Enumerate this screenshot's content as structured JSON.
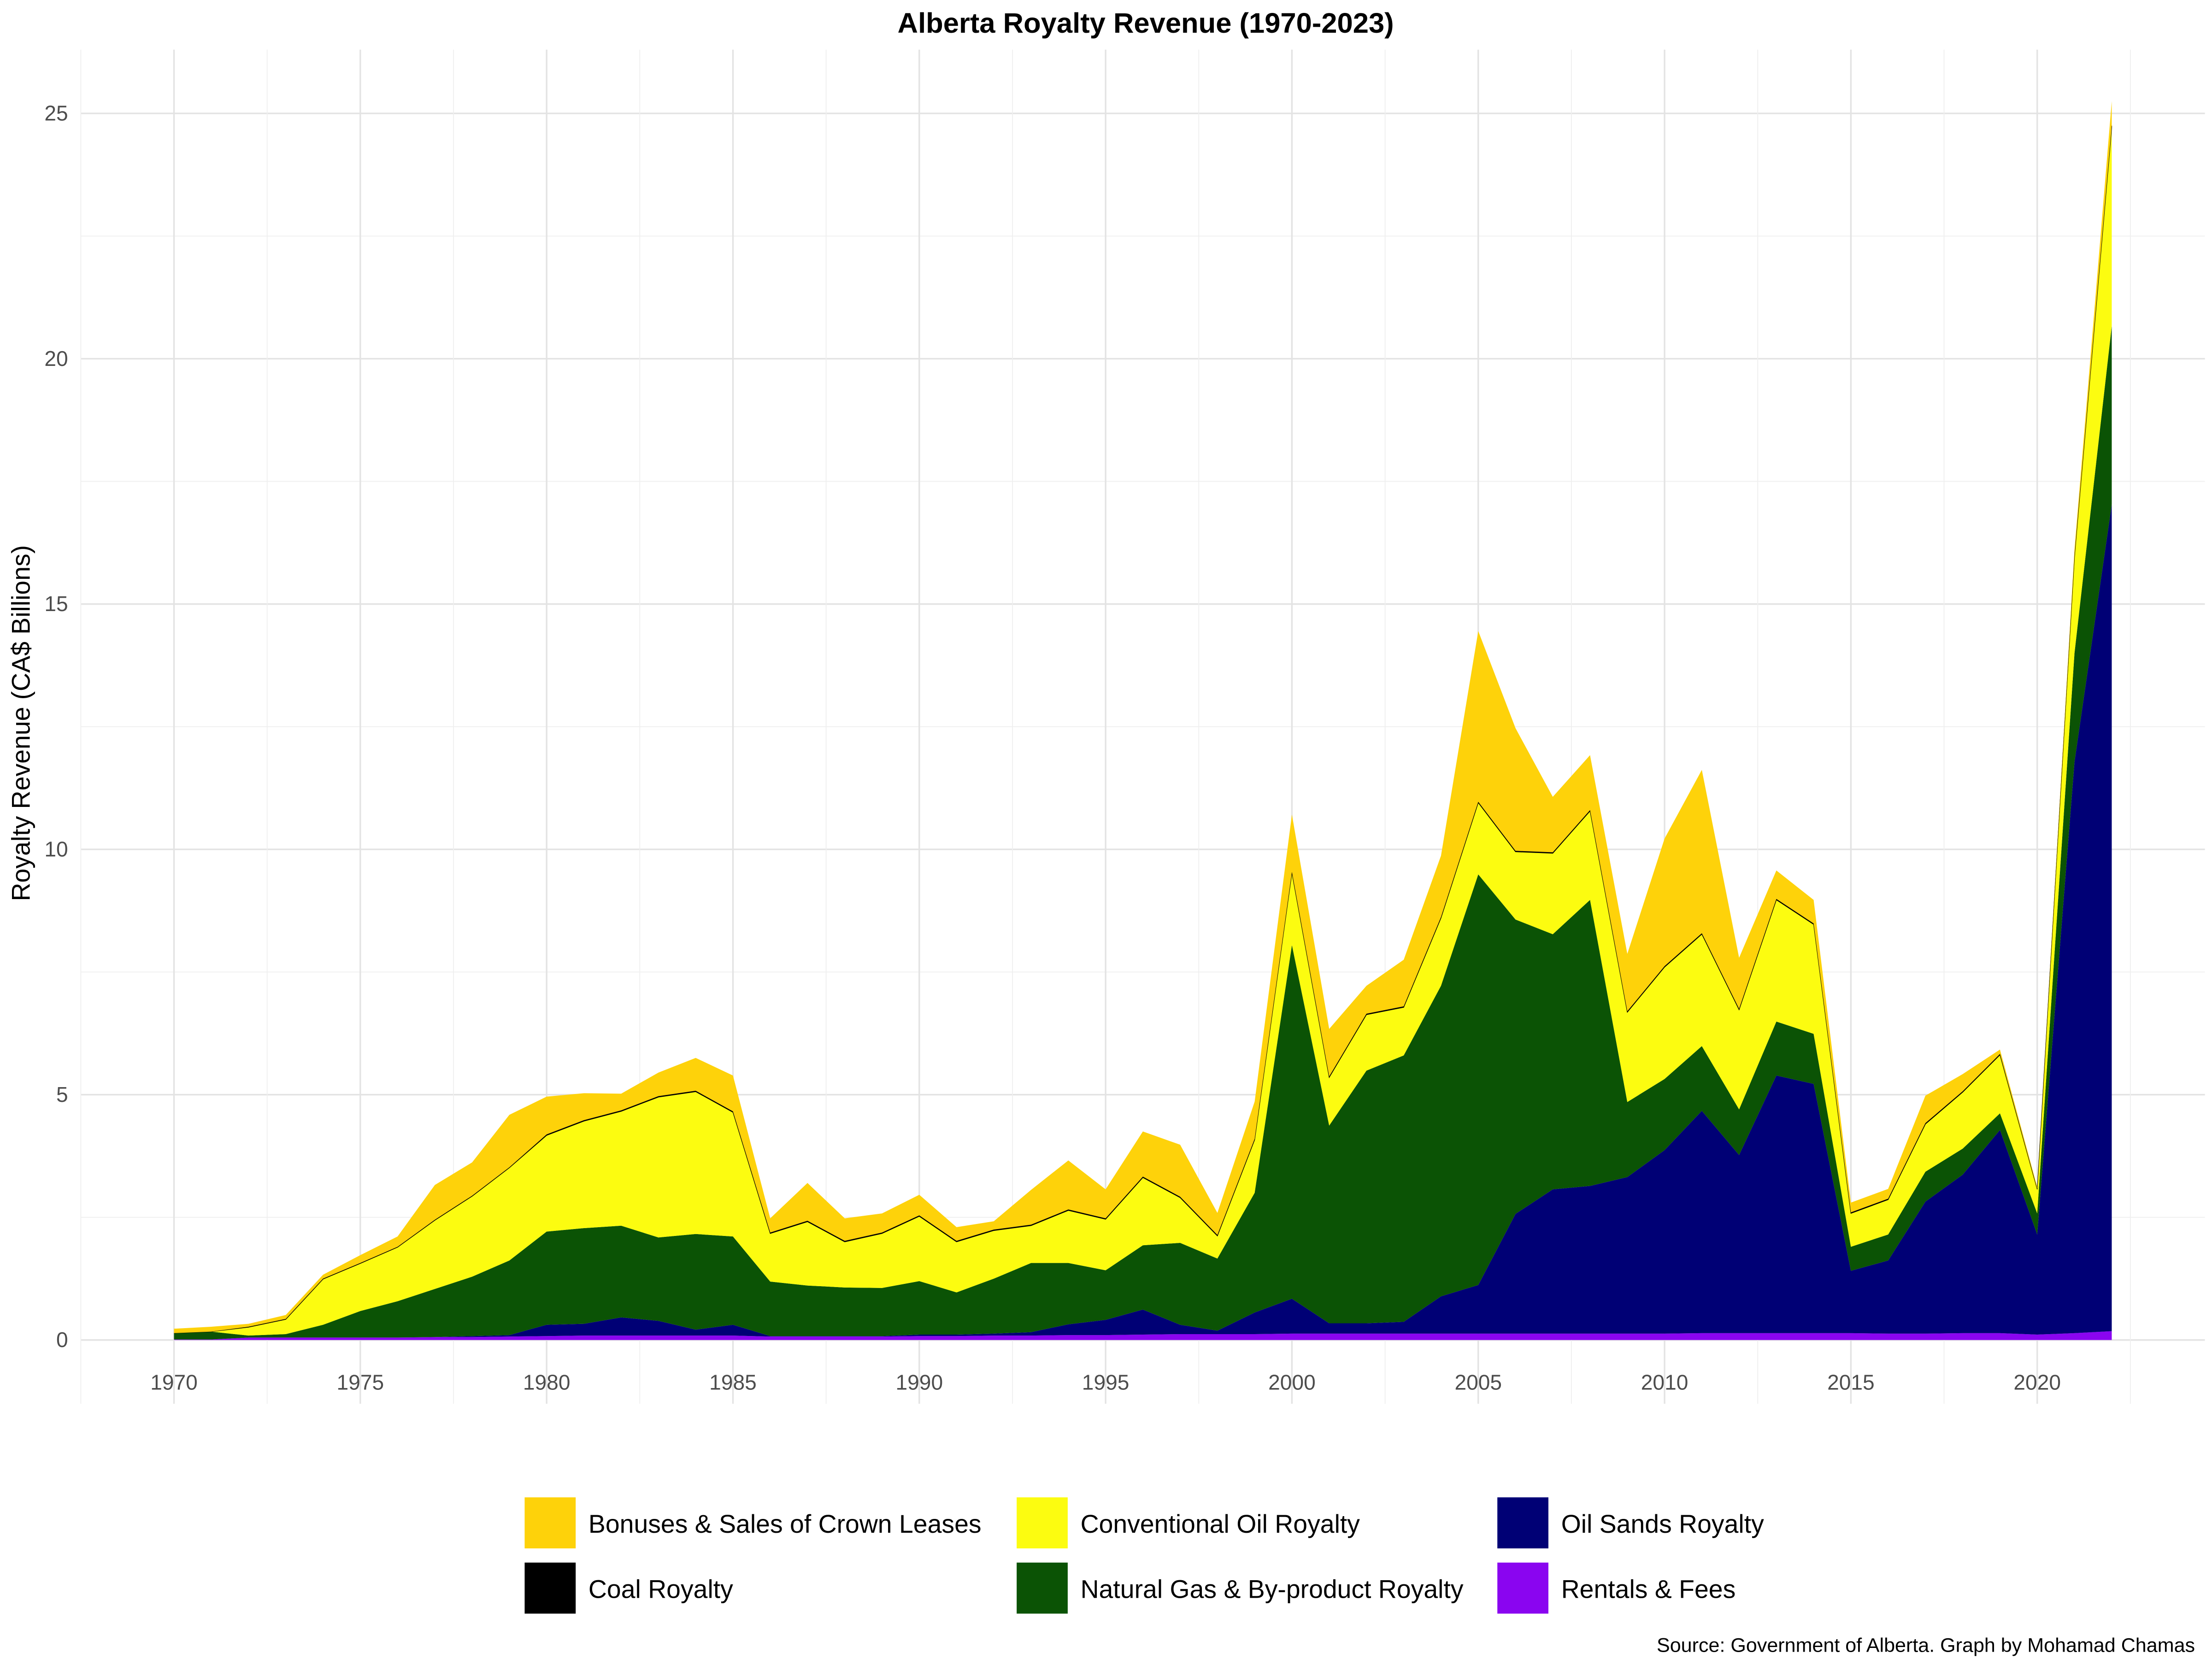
{
  "chart_data": {
    "type": "area",
    "stacked": true,
    "title": "Alberta Royalty Revenue (1970-2023)",
    "xlabel": "",
    "ylabel": "Royalty Revenue (CA$ Billions)",
    "caption": "Source: Government of Alberta. Graph by Mohamad Chamas",
    "xlim": [
      1967.5,
      2024.5
    ],
    "ylim": [
      -1.3,
      26.3
    ],
    "x_ticks": [
      "1970",
      "1975",
      "1980",
      "1985",
      "1990",
      "1995",
      "2000",
      "2005",
      "2010",
      "2015",
      "2020"
    ],
    "y_ticks": [
      "0",
      "5",
      "10",
      "15",
      "20",
      "25"
    ],
    "grid": true,
    "legend_position": "bottom",
    "x": [
      1970,
      1971,
      1972,
      1973,
      1974,
      1975,
      1976,
      1977,
      1978,
      1979,
      1980,
      1981,
      1982,
      1983,
      1984,
      1985,
      1986,
      1987,
      1988,
      1989,
      1990,
      1991,
      1992,
      1993,
      1994,
      1995,
      1996,
      1997,
      1998,
      1999,
      2000,
      2001,
      2002,
      2003,
      2004,
      2005,
      2006,
      2007,
      2008,
      2009,
      2010,
      2011,
      2012,
      2013,
      2014,
      2015,
      2016,
      2017,
      2018,
      2019,
      2020,
      2021,
      2022
    ],
    "series": [
      {
        "name": "Bonuses & Sales of Crown Leases",
        "color": "#FED20A",
        "values": [
          0.09,
          0.1,
          0.06,
          0.08,
          0.08,
          0.16,
          0.21,
          0.71,
          0.68,
          1.07,
          0.77,
          0.55,
          0.34,
          0.48,
          0.67,
          0.73,
          0.29,
          0.77,
          0.46,
          0.39,
          0.42,
          0.28,
          0.17,
          0.71,
          1.0,
          0.59,
          0.92,
          1.06,
          0.45,
          0.76,
          1.17,
          0.97,
          0.57,
          0.95,
          1.25,
          3.48,
          2.5,
          1.13,
          1.12,
          1.17,
          2.6,
          3.33,
          1.04,
          0.58,
          0.48,
          0.2,
          0.2,
          0.56,
          0.35,
          0.09,
          0.04,
          0.14,
          0.5
        ]
      },
      {
        "name": "Coal Royalty",
        "color": "#000000",
        "values": [
          0,
          0,
          0.01,
          0.01,
          0.01,
          0.01,
          0.01,
          0.01,
          0.01,
          0.01,
          0.02,
          0.02,
          0.02,
          0.02,
          0.02,
          0.02,
          0.02,
          0.02,
          0.02,
          0.02,
          0.02,
          0.02,
          0.02,
          0.02,
          0.02,
          0.02,
          0.02,
          0.02,
          0.02,
          0.02,
          0.02,
          0.02,
          0.02,
          0.02,
          0.02,
          0.02,
          0.02,
          0.02,
          0.02,
          0.02,
          0.02,
          0.02,
          0.02,
          0.02,
          0.02,
          0.02,
          0.02,
          0.02,
          0.02,
          0.02,
          0.01,
          0.02,
          0.03
        ]
      },
      {
        "name": "Conventional Oil Royalty",
        "color": "#FCFC10",
        "values": [
          0,
          0,
          0.17,
          0.3,
          0.93,
          0.97,
          1.1,
          1.4,
          1.64,
          1.89,
          1.96,
          2.18,
          2.33,
          2.86,
          2.9,
          2.53,
          0.98,
          1.3,
          0.93,
          1.11,
          1.32,
          1.03,
          0.98,
          0.76,
          1.07,
          1.04,
          1.38,
          0.92,
          0.46,
          1.08,
          1.47,
          0.98,
          1.14,
          0.98,
          1.38,
          1.46,
          1.38,
          1.65,
          1.81,
          1.83,
          2.28,
          2.28,
          2.03,
          2.48,
          2.23,
          0.68,
          0.71,
          0.97,
          1.15,
          1.19,
          0.49,
          1.96,
          4.05
        ]
      },
      {
        "name": "Natural Gas & By-product Royalty",
        "color": "#0B5305",
        "values": [
          0.13,
          0.16,
          0.04,
          0.07,
          0.26,
          0.54,
          0.74,
          0.98,
          1.21,
          1.52,
          1.9,
          1.95,
          1.87,
          1.7,
          1.95,
          1.8,
          1.11,
          1.03,
          0.99,
          0.98,
          1.09,
          0.86,
          1.12,
          1.41,
          1.25,
          1.01,
          1.31,
          1.67,
          1.47,
          2.44,
          7.21,
          4.03,
          5.15,
          5.43,
          6.33,
          8.37,
          6.0,
          5.2,
          5.83,
          1.53,
          1.45,
          1.32,
          0.93,
          1.1,
          1.02,
          0.49,
          0.53,
          0.61,
          0.53,
          0.34,
          0.43,
          2.22,
          3.64
        ]
      },
      {
        "name": "Oil Sands Royalty",
        "color": "#000075",
        "values": [
          0,
          0,
          0,
          0,
          0,
          0,
          0,
          0,
          0.02,
          0.03,
          0.23,
          0.24,
          0.37,
          0.3,
          0.12,
          0.22,
          0.01,
          0.01,
          0.01,
          0.01,
          0.03,
          0.03,
          0.04,
          0.07,
          0.22,
          0.31,
          0.51,
          0.19,
          0.07,
          0.44,
          0.71,
          0.21,
          0.21,
          0.24,
          0.76,
          0.99,
          2.44,
          2.94,
          3.01,
          3.19,
          3.74,
          4.53,
          3.63,
          5.25,
          5.08,
          1.27,
          1.49,
          2.69,
          3.23,
          4.14,
          2.04,
          11.64,
          16.85
        ]
      },
      {
        "name": "Rentals & Fees",
        "color": "#8A05F0",
        "values": [
          0.01,
          0.01,
          0.05,
          0.05,
          0.05,
          0.05,
          0.05,
          0.06,
          0.06,
          0.07,
          0.08,
          0.09,
          0.09,
          0.09,
          0.09,
          0.09,
          0.07,
          0.07,
          0.07,
          0.07,
          0.08,
          0.08,
          0.09,
          0.09,
          0.1,
          0.1,
          0.11,
          0.12,
          0.12,
          0.12,
          0.13,
          0.13,
          0.13,
          0.13,
          0.13,
          0.13,
          0.13,
          0.13,
          0.13,
          0.13,
          0.13,
          0.14,
          0.14,
          0.14,
          0.14,
          0.14,
          0.13,
          0.13,
          0.14,
          0.14,
          0.11,
          0.14,
          0.18
        ]
      }
    ]
  }
}
